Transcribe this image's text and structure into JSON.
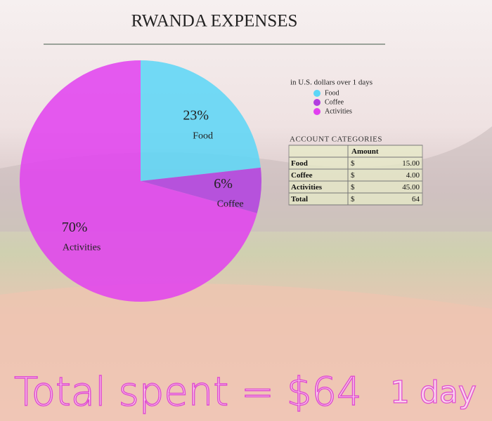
{
  "chart_data": {
    "type": "pie",
    "title": "RWANDA EXPENSES",
    "subtitle": "in U.S. dollars over 1 days",
    "categories": [
      "Food",
      "Coffee",
      "Activities"
    ],
    "values": [
      23,
      6,
      70
    ],
    "value_labels": [
      "23%",
      "6%",
      "70%"
    ],
    "colors": [
      "#5ad6f7",
      "#b23ee0",
      "#e23ff0"
    ],
    "legend": "top-right"
  },
  "table": {
    "title": "ACCOUNT CATEGORIES",
    "header": "Amount",
    "rows": [
      [
        "Food",
        "$",
        "15.00"
      ],
      [
        "Coffee",
        "$",
        "4.00"
      ],
      [
        "Activities",
        "$",
        "45.00"
      ],
      [
        "Total",
        "$",
        "64"
      ]
    ]
  },
  "footer": {
    "total": "Total spent = $64",
    "period": "1 day"
  }
}
